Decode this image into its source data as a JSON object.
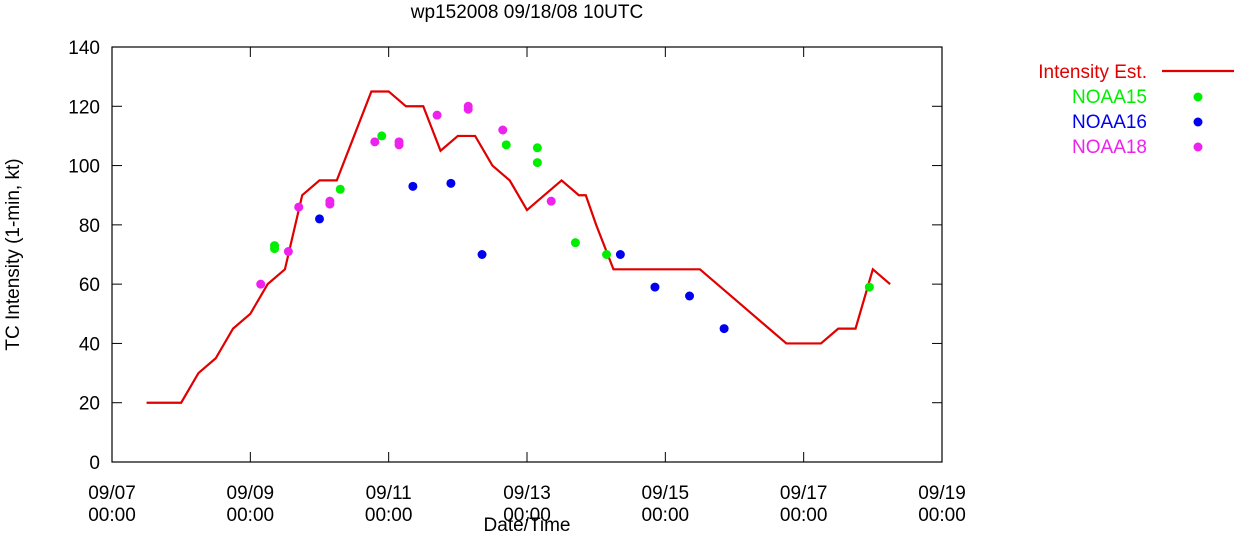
{
  "chart_data": {
    "type": "line",
    "title": "wp152008 09/18/08 10UTC",
    "xlabel": "Date/Time",
    "ylabel": "TC Intensity (1-min, kt)",
    "x_unit": "day",
    "xlim": [
      7,
      19
    ],
    "ylim": [
      0,
      140
    ],
    "x_ticks": [
      {
        "value": 7,
        "line1": "09/07",
        "line2": "00:00"
      },
      {
        "value": 9,
        "line1": "09/09",
        "line2": "00:00"
      },
      {
        "value": 11,
        "line1": "09/11",
        "line2": "00:00"
      },
      {
        "value": 13,
        "line1": "09/13",
        "line2": "00:00"
      },
      {
        "value": 15,
        "line1": "09/15",
        "line2": "00:00"
      },
      {
        "value": 17,
        "line1": "09/17",
        "line2": "00:00"
      },
      {
        "value": 19,
        "line1": "09/19",
        "line2": "00:00"
      }
    ],
    "y_ticks": [
      0,
      20,
      40,
      60,
      80,
      100,
      120,
      140
    ],
    "grid": false,
    "legend_position": "top-right",
    "series": [
      {
        "name": "Intensity Est.",
        "kind": "line",
        "color": "#e00000",
        "x": [
          7.5,
          8.0,
          8.25,
          8.5,
          8.75,
          9.0,
          9.25,
          9.5,
          9.75,
          10.0,
          10.25,
          10.5,
          10.75,
          11.0,
          11.25,
          11.5,
          11.75,
          12.0,
          12.25,
          12.5,
          12.75,
          13.0,
          13.25,
          13.5,
          13.75,
          13.85,
          14.0,
          14.25,
          14.5,
          15.0,
          15.5,
          16.0,
          16.5,
          16.75,
          17.0,
          17.25,
          17.5,
          17.75,
          18.0,
          18.25
        ],
        "y": [
          20,
          20,
          30,
          35,
          45,
          50,
          60,
          65,
          90,
          95,
          95,
          110,
          125,
          125,
          120,
          120,
          105,
          110,
          110,
          100,
          95,
          85,
          90,
          95,
          90,
          90,
          80,
          65,
          65,
          65,
          65,
          55,
          45,
          40,
          40,
          40,
          45,
          45,
          65,
          60
        ]
      },
      {
        "name": "NOAA15",
        "kind": "points",
        "color": "#00ee00",
        "x": [
          9.35,
          9.35,
          10.3,
          10.9,
          12.7,
          13.15,
          13.15,
          13.7,
          14.15,
          17.95
        ],
        "y": [
          73,
          72,
          92,
          110,
          107,
          106,
          101,
          74,
          70,
          59
        ]
      },
      {
        "name": "NOAA16",
        "kind": "points",
        "color": "#0000ee",
        "x": [
          10.0,
          11.35,
          11.9,
          12.35,
          14.35,
          14.85,
          15.35,
          15.85
        ],
        "y": [
          82,
          93,
          94,
          70,
          70,
          59,
          56,
          45
        ]
      },
      {
        "name": "NOAA18",
        "kind": "points",
        "color": "#ee22ee",
        "x": [
          9.15,
          9.55,
          9.7,
          10.15,
          10.15,
          10.8,
          11.15,
          11.15,
          11.7,
          12.15,
          12.15,
          12.65,
          13.35
        ],
        "y": [
          60,
          71,
          86,
          88,
          87,
          108,
          108,
          107,
          117,
          120,
          119,
          112,
          88
        ]
      }
    ]
  }
}
